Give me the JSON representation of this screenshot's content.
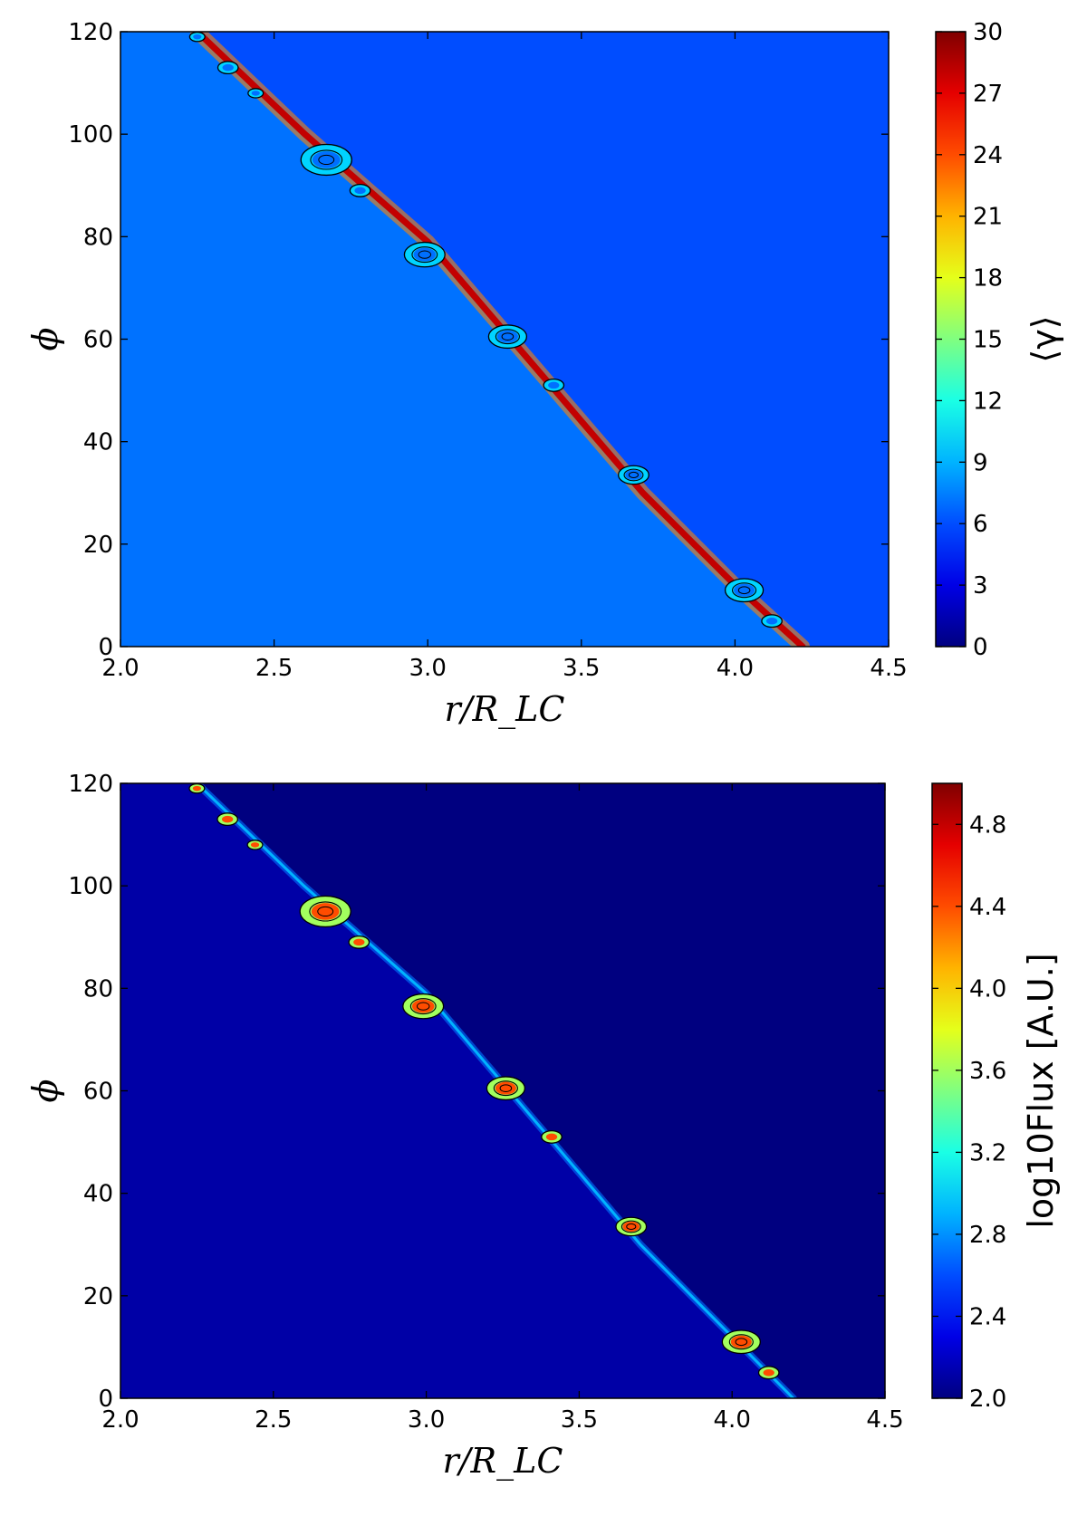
{
  "chart_data": [
    {
      "type": "heatmap",
      "title": "",
      "xlabel": "r/R_LC",
      "ylabel": "ϕ",
      "xlim": [
        2.0,
        4.5
      ],
      "ylim": [
        0,
        120
      ],
      "xticks": [
        "2.0",
        "2.5",
        "3.0",
        "3.5",
        "4.0",
        "4.5"
      ],
      "yticks": [
        "0",
        "20",
        "40",
        "60",
        "80",
        "100",
        "120"
      ],
      "colorbar": {
        "label": "⟨γ⟩",
        "range": [
          0,
          30
        ],
        "ticks": [
          "0",
          "3",
          "6",
          "9",
          "12",
          "15",
          "18",
          "21",
          "24",
          "27",
          "30"
        ],
        "colormap": "jet"
      },
      "background_level": 6,
      "ridge": {
        "description": "bright diagonal current sheet",
        "points": [
          [
            2.25,
            120
          ],
          [
            2.6,
            100
          ],
          [
            3.0,
            79
          ],
          [
            3.3,
            58
          ],
          [
            3.7,
            30
          ],
          [
            4.0,
            12
          ],
          [
            4.22,
            0
          ]
        ],
        "peak_level": 28
      },
      "plasmoids": [
        {
          "x": 2.25,
          "y": 119,
          "size": 0.3
        },
        {
          "x": 2.35,
          "y": 113,
          "size": 0.4
        },
        {
          "x": 2.44,
          "y": 108,
          "size": 0.3
        },
        {
          "x": 2.67,
          "y": 95,
          "size": 1.0
        },
        {
          "x": 2.78,
          "y": 89,
          "size": 0.4
        },
        {
          "x": 2.99,
          "y": 76.5,
          "size": 0.8
        },
        {
          "x": 3.26,
          "y": 60.5,
          "size": 0.75
        },
        {
          "x": 3.41,
          "y": 51,
          "size": 0.4
        },
        {
          "x": 3.67,
          "y": 33.5,
          "size": 0.6
        },
        {
          "x": 4.03,
          "y": 11,
          "size": 0.75
        },
        {
          "x": 4.12,
          "y": 5,
          "size": 0.4
        }
      ]
    },
    {
      "type": "heatmap",
      "title": "",
      "xlabel": "r/R_LC",
      "ylabel": "ϕ",
      "xlim": [
        2.0,
        4.5
      ],
      "ylim": [
        0,
        120
      ],
      "xticks": [
        "2.0",
        "2.5",
        "3.0",
        "3.5",
        "4.0",
        "4.5"
      ],
      "yticks": [
        "0",
        "20",
        "40",
        "60",
        "80",
        "100",
        "120"
      ],
      "colorbar": {
        "label": "log10Flux [A.U.]",
        "range": [
          2.0,
          5.0
        ],
        "ticks": [
          "2.0",
          "2.4",
          "2.8",
          "3.2",
          "3.6",
          "4.0",
          "4.4",
          "4.8"
        ],
        "colormap": "jet"
      },
      "background_level": 2.0,
      "ridge": {
        "description": "faint diagonal current sheet",
        "points": [
          [
            2.25,
            120
          ],
          [
            2.6,
            100
          ],
          [
            3.0,
            79
          ],
          [
            3.3,
            58
          ],
          [
            3.7,
            30
          ],
          [
            4.0,
            12
          ],
          [
            4.2,
            0
          ]
        ],
        "peak_level": 2.9
      },
      "plasmoids": [
        {
          "x": 2.25,
          "y": 119,
          "size": 0.3
        },
        {
          "x": 2.35,
          "y": 113,
          "size": 0.4
        },
        {
          "x": 2.44,
          "y": 108,
          "size": 0.3
        },
        {
          "x": 2.67,
          "y": 95,
          "size": 1.0
        },
        {
          "x": 2.78,
          "y": 89,
          "size": 0.4
        },
        {
          "x": 2.99,
          "y": 76.5,
          "size": 0.8
        },
        {
          "x": 3.26,
          "y": 60.5,
          "size": 0.75
        },
        {
          "x": 3.41,
          "y": 51,
          "size": 0.4
        },
        {
          "x": 3.67,
          "y": 33.5,
          "size": 0.6
        },
        {
          "x": 4.03,
          "y": 11,
          "size": 0.75
        },
        {
          "x": 4.12,
          "y": 5,
          "size": 0.4
        }
      ]
    }
  ]
}
